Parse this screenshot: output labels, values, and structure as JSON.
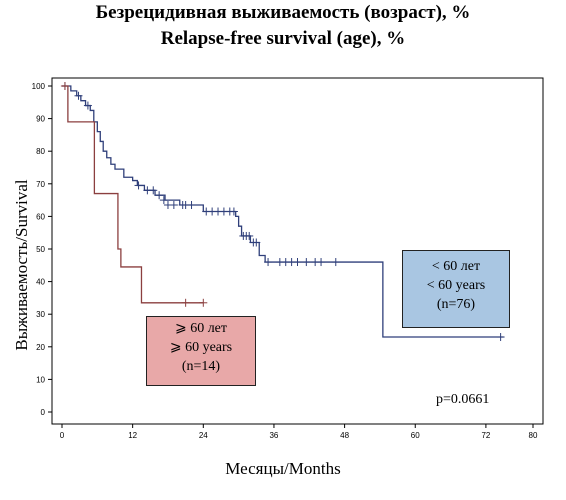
{
  "title_ru": "Безрецидивная выживаемость (возраст), %",
  "title_en": "Relapse-free survival  (age), %",
  "p_value": "p=0.0661",
  "chart_data": {
    "type": "line",
    "title": "Безрецидивная выживаемость (возраст), % / Relapse-free survival  (age), %",
    "xlabel": "Месяцы/Months",
    "ylabel": "Выживаемость/Survival",
    "xlim": [
      0,
      80
    ],
    "ylim": [
      0,
      100
    ],
    "xticks": [
      0,
      12,
      24,
      36,
      48,
      60,
      72,
      80
    ],
    "yticks": [
      0,
      10,
      20,
      30,
      40,
      50,
      60,
      70,
      80,
      90,
      100
    ],
    "grid": false,
    "series": [
      {
        "name": "< 60 лет / < 60 years (n=76)",
        "label_lines": [
          "< 60 лет",
          "< 60 years",
          "(n=76)"
        ],
        "color": "#2f3f7a",
        "step_x": [
          0,
          1.5,
          2.5,
          3.2,
          4,
          4.8,
          5.4,
          6,
          6.5,
          7,
          7.6,
          8.3,
          9,
          10.5,
          12,
          12.8,
          14,
          15.8,
          17.5,
          20,
          24,
          29.5,
          30,
          30.5,
          32,
          33.5,
          34.5,
          54.5,
          75
        ],
        "step_y": [
          100,
          98.5,
          97,
          95.5,
          94,
          92.5,
          89,
          86,
          83,
          80,
          78,
          76,
          74.5,
          72,
          71,
          69.5,
          68,
          66.5,
          65,
          63.5,
          61.5,
          60,
          57,
          54,
          52,
          48,
          46,
          23,
          23
        ],
        "censored": [
          [
            0.5,
            100
          ],
          [
            2.8,
            97
          ],
          [
            4.4,
            94
          ],
          [
            13,
            69.5
          ],
          [
            14.5,
            68
          ],
          [
            15.5,
            68
          ],
          [
            16.5,
            66.5
          ],
          [
            17.3,
            65
          ],
          [
            18,
            63.5
          ],
          [
            19,
            63.5
          ],
          [
            20.5,
            63.5
          ],
          [
            21,
            63.5
          ],
          [
            22,
            63.5
          ],
          [
            24.5,
            61.5
          ],
          [
            25.5,
            61.5
          ],
          [
            26.5,
            61.5
          ],
          [
            27.5,
            61.5
          ],
          [
            28.5,
            61.5
          ],
          [
            29.2,
            61.5
          ],
          [
            30.8,
            54
          ],
          [
            31.3,
            54
          ],
          [
            31.8,
            54
          ],
          [
            32.5,
            52
          ],
          [
            33,
            52
          ],
          [
            35,
            46
          ],
          [
            37,
            46
          ],
          [
            38,
            46
          ],
          [
            39,
            46
          ],
          [
            40,
            46
          ],
          [
            41.5,
            46
          ],
          [
            43,
            46
          ],
          [
            44,
            46
          ],
          [
            46.5,
            46
          ],
          [
            74.5,
            23
          ]
        ]
      },
      {
        "name": "≥ 60 лет / ≥ 60 years (n=14)",
        "label_lines": [
          "⩾ 60 лет",
          "⩾ 60 years",
          "(n=14)"
        ],
        "color": "#8b3f3f",
        "step_x": [
          0,
          1,
          5.5,
          9.5,
          10,
          13.5,
          24
        ],
        "step_y": [
          100,
          89,
          67,
          50,
          44.5,
          33.5,
          33.5
        ],
        "censored": [
          [
            0.5,
            100
          ],
          [
            21,
            33.5
          ],
          [
            24,
            33.5
          ]
        ]
      }
    ]
  }
}
